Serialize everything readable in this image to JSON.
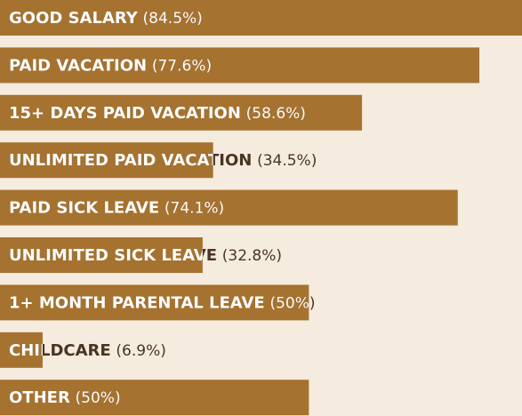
{
  "chart_data": {
    "type": "bar",
    "orientation": "horizontal",
    "color": "#a6722f",
    "categories": [
      "GOOD SALARY",
      "PAID VACATION",
      "15+ DAYS PAID VACATION",
      "UNLIMITED PAID VACATION",
      "PAID SICK LEAVE",
      "UNLIMITED SICK LEAVE",
      "1+ MONTH PARENTAL LEAVE",
      "CHILDCARE",
      "OTHER"
    ],
    "values": [
      84.5,
      77.6,
      58.6,
      34.5,
      74.1,
      32.8,
      50,
      6.9,
      50
    ],
    "value_labels": [
      "(84.5%)",
      "(77.6%)",
      "(58.6%)",
      "(34.5%)",
      "(74.1%)",
      "(32.8%)",
      "(50%)",
      "(6.9%)",
      "(50%)"
    ],
    "xlim": [
      0,
      84.5
    ]
  }
}
